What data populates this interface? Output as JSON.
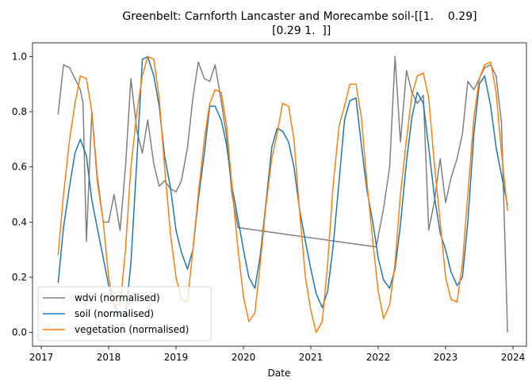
{
  "chart_data": {
    "type": "line",
    "title_lines": [
      "Greenbelt: Carnforth Lancaster and Morecambe soil-[[1.    0.29]",
      " [0.29 1.  ]]"
    ],
    "xlabel": "Date",
    "ylabel": "",
    "xlim": [
      2016.87,
      2024.2
    ],
    "ylim": [
      -0.05,
      1.05
    ],
    "x_ticks": [
      2017,
      2018,
      2019,
      2020,
      2021,
      2022,
      2023,
      2024
    ],
    "x_tick_labels": [
      "2017",
      "2018",
      "2019",
      "2020",
      "2021",
      "2022",
      "2023",
      "2024"
    ],
    "y_ticks": [
      0.0,
      0.2,
      0.4,
      0.6,
      0.8,
      1.0
    ],
    "y_tick_labels": [
      "0.0",
      "0.2",
      "0.4",
      "0.6",
      "0.8",
      "1.0"
    ],
    "grid": false,
    "legend_position": "lower-left",
    "series": [
      {
        "name": "wdvi (normalised)",
        "color": "#808080",
        "points": [
          [
            2017.25,
            0.79
          ],
          [
            2017.33,
            0.97
          ],
          [
            2017.42,
            0.96
          ],
          [
            2017.5,
            0.92
          ],
          [
            2017.58,
            0.88
          ],
          [
            2017.62,
            0.83
          ],
          [
            2017.67,
            0.33
          ],
          [
            2017.75,
            0.8
          ],
          [
            2017.83,
            0.57
          ],
          [
            2017.92,
            0.4
          ],
          [
            2018.0,
            0.4
          ],
          [
            2018.08,
            0.5
          ],
          [
            2018.17,
            0.37
          ],
          [
            2018.25,
            0.6
          ],
          [
            2018.33,
            0.92
          ],
          [
            2018.42,
            0.73
          ],
          [
            2018.5,
            0.65
          ],
          [
            2018.58,
            0.77
          ],
          [
            2018.67,
            0.61
          ],
          [
            2018.75,
            0.53
          ],
          [
            2018.83,
            0.55
          ],
          [
            2018.92,
            0.52
          ],
          [
            2019.0,
            0.51
          ],
          [
            2019.08,
            0.55
          ],
          [
            2019.17,
            0.67
          ],
          [
            2019.25,
            0.85
          ],
          [
            2019.33,
            0.98
          ],
          [
            2019.42,
            0.92
          ],
          [
            2019.5,
            0.91
          ],
          [
            2019.58,
            0.97
          ],
          [
            2019.67,
            0.84
          ],
          [
            2019.75,
            0.71
          ],
          [
            2019.83,
            0.5
          ],
          [
            2019.92,
            0.38
          ],
          [
            2021.97,
            0.31
          ],
          [
            2022.08,
            0.45
          ],
          [
            2022.17,
            0.6
          ],
          [
            2022.25,
            1.0
          ],
          [
            2022.33,
            0.69
          ],
          [
            2022.42,
            0.95
          ],
          [
            2022.5,
            0.87
          ],
          [
            2022.58,
            0.83
          ],
          [
            2022.67,
            0.86
          ],
          [
            2022.75,
            0.37
          ],
          [
            2022.83,
            0.47
          ],
          [
            2022.92,
            0.63
          ],
          [
            2023.0,
            0.47
          ],
          [
            2023.08,
            0.56
          ],
          [
            2023.17,
            0.63
          ],
          [
            2023.25,
            0.72
          ],
          [
            2023.33,
            0.91
          ],
          [
            2023.42,
            0.88
          ],
          [
            2023.5,
            0.92
          ],
          [
            2023.58,
            0.96
          ],
          [
            2023.67,
            0.97
          ],
          [
            2023.75,
            0.93
          ],
          [
            2023.83,
            0.76
          ],
          [
            2023.92,
            0.0
          ]
        ]
      },
      {
        "name": "soil (normalised)",
        "color": "#1f77b4",
        "points": [
          [
            2017.25,
            0.18
          ],
          [
            2017.33,
            0.38
          ],
          [
            2017.42,
            0.53
          ],
          [
            2017.5,
            0.65
          ],
          [
            2017.58,
            0.7
          ],
          [
            2017.67,
            0.64
          ],
          [
            2017.75,
            0.48
          ],
          [
            2017.83,
            0.38
          ],
          [
            2017.92,
            0.27
          ],
          [
            2018.0,
            0.17
          ],
          [
            2018.08,
            0.1
          ],
          [
            2018.17,
            0.06
          ],
          [
            2018.25,
            0.06
          ],
          [
            2018.33,
            0.25
          ],
          [
            2018.42,
            0.63
          ],
          [
            2018.5,
            0.99
          ],
          [
            2018.58,
            1.0
          ],
          [
            2018.67,
            0.93
          ],
          [
            2018.75,
            0.82
          ],
          [
            2018.83,
            0.64
          ],
          [
            2018.92,
            0.52
          ],
          [
            2019.0,
            0.37
          ],
          [
            2019.08,
            0.29
          ],
          [
            2019.17,
            0.23
          ],
          [
            2019.25,
            0.3
          ],
          [
            2019.33,
            0.48
          ],
          [
            2019.42,
            0.65
          ],
          [
            2019.5,
            0.82
          ],
          [
            2019.58,
            0.82
          ],
          [
            2019.67,
            0.77
          ],
          [
            2019.75,
            0.68
          ],
          [
            2019.83,
            0.53
          ],
          [
            2019.92,
            0.41
          ],
          [
            2020.0,
            0.3
          ],
          [
            2020.08,
            0.2
          ],
          [
            2020.17,
            0.16
          ],
          [
            2020.25,
            0.28
          ],
          [
            2020.33,
            0.46
          ],
          [
            2020.42,
            0.67
          ],
          [
            2020.5,
            0.74
          ],
          [
            2020.58,
            0.73
          ],
          [
            2020.67,
            0.69
          ],
          [
            2020.75,
            0.6
          ],
          [
            2020.83,
            0.45
          ],
          [
            2020.92,
            0.33
          ],
          [
            2021.0,
            0.23
          ],
          [
            2021.08,
            0.14
          ],
          [
            2021.17,
            0.09
          ],
          [
            2021.25,
            0.15
          ],
          [
            2021.33,
            0.31
          ],
          [
            2021.42,
            0.55
          ],
          [
            2021.5,
            0.77
          ],
          [
            2021.58,
            0.84
          ],
          [
            2021.67,
            0.85
          ],
          [
            2021.75,
            0.68
          ],
          [
            2021.83,
            0.52
          ],
          [
            2021.92,
            0.4
          ],
          [
            2022.0,
            0.27
          ],
          [
            2022.08,
            0.19
          ],
          [
            2022.17,
            0.16
          ],
          [
            2022.25,
            0.23
          ],
          [
            2022.33,
            0.39
          ],
          [
            2022.42,
            0.62
          ],
          [
            2022.5,
            0.78
          ],
          [
            2022.58,
            0.87
          ],
          [
            2022.67,
            0.83
          ],
          [
            2022.75,
            0.67
          ],
          [
            2022.83,
            0.5
          ],
          [
            2022.92,
            0.36
          ],
          [
            2023.0,
            0.3
          ],
          [
            2023.08,
            0.22
          ],
          [
            2023.17,
            0.17
          ],
          [
            2023.25,
            0.2
          ],
          [
            2023.33,
            0.4
          ],
          [
            2023.42,
            0.72
          ],
          [
            2023.5,
            0.9
          ],
          [
            2023.58,
            0.93
          ],
          [
            2023.67,
            0.82
          ],
          [
            2023.75,
            0.67
          ],
          [
            2023.83,
            0.57
          ],
          [
            2023.92,
            0.46
          ]
        ]
      },
      {
        "name": "vegetation (normalised)",
        "color": "#ff7f0e",
        "points": [
          [
            2017.25,
            0.28
          ],
          [
            2017.33,
            0.5
          ],
          [
            2017.42,
            0.7
          ],
          [
            2017.5,
            0.83
          ],
          [
            2017.58,
            0.93
          ],
          [
            2017.67,
            0.92
          ],
          [
            2017.75,
            0.8
          ],
          [
            2017.83,
            0.55
          ],
          [
            2017.92,
            0.4
          ],
          [
            2018.0,
            0.2
          ],
          [
            2018.08,
            0.1
          ],
          [
            2018.17,
            0.1
          ],
          [
            2018.25,
            0.3
          ],
          [
            2018.33,
            0.6
          ],
          [
            2018.42,
            0.8
          ],
          [
            2018.5,
            0.93
          ],
          [
            2018.58,
            1.0
          ],
          [
            2018.67,
            0.99
          ],
          [
            2018.75,
            0.85
          ],
          [
            2018.83,
            0.6
          ],
          [
            2018.92,
            0.35
          ],
          [
            2019.0,
            0.2
          ],
          [
            2019.08,
            0.12
          ],
          [
            2019.17,
            0.11
          ],
          [
            2019.25,
            0.3
          ],
          [
            2019.33,
            0.5
          ],
          [
            2019.42,
            0.7
          ],
          [
            2019.5,
            0.83
          ],
          [
            2019.58,
            0.88
          ],
          [
            2019.67,
            0.87
          ],
          [
            2019.75,
            0.75
          ],
          [
            2019.83,
            0.53
          ],
          [
            2019.92,
            0.3
          ],
          [
            2020.0,
            0.13
          ],
          [
            2020.08,
            0.04
          ],
          [
            2020.17,
            0.07
          ],
          [
            2020.25,
            0.25
          ],
          [
            2020.33,
            0.45
          ],
          [
            2020.42,
            0.63
          ],
          [
            2020.5,
            0.72
          ],
          [
            2020.58,
            0.83
          ],
          [
            2020.67,
            0.82
          ],
          [
            2020.75,
            0.7
          ],
          [
            2020.83,
            0.45
          ],
          [
            2020.92,
            0.2
          ],
          [
            2021.0,
            0.08
          ],
          [
            2021.08,
            0.0
          ],
          [
            2021.17,
            0.04
          ],
          [
            2021.25,
            0.25
          ],
          [
            2021.33,
            0.53
          ],
          [
            2021.42,
            0.75
          ],
          [
            2021.5,
            0.82
          ],
          [
            2021.58,
            0.9
          ],
          [
            2021.67,
            0.9
          ],
          [
            2021.75,
            0.78
          ],
          [
            2021.83,
            0.55
          ],
          [
            2021.92,
            0.33
          ],
          [
            2022.0,
            0.15
          ],
          [
            2022.08,
            0.05
          ],
          [
            2022.17,
            0.1
          ],
          [
            2022.25,
            0.25
          ],
          [
            2022.33,
            0.5
          ],
          [
            2022.42,
            0.7
          ],
          [
            2022.5,
            0.86
          ],
          [
            2022.58,
            0.93
          ],
          [
            2022.67,
            0.94
          ],
          [
            2022.75,
            0.85
          ],
          [
            2022.83,
            0.62
          ],
          [
            2022.92,
            0.4
          ],
          [
            2023.0,
            0.2
          ],
          [
            2023.08,
            0.12
          ],
          [
            2023.17,
            0.11
          ],
          [
            2023.25,
            0.25
          ],
          [
            2023.33,
            0.5
          ],
          [
            2023.42,
            0.78
          ],
          [
            2023.5,
            0.92
          ],
          [
            2023.58,
            0.97
          ],
          [
            2023.67,
            0.98
          ],
          [
            2023.75,
            0.87
          ],
          [
            2023.83,
            0.65
          ],
          [
            2023.92,
            0.44
          ]
        ]
      }
    ]
  }
}
